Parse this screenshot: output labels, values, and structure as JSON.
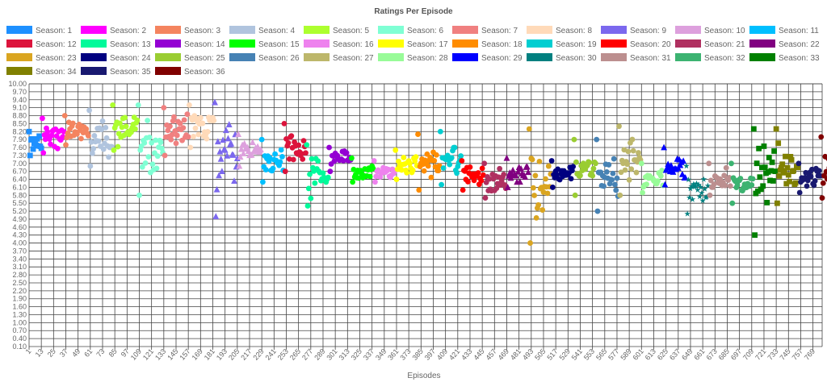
{
  "chart_data": {
    "type": "scatter",
    "title": "Ratings Per Episode",
    "xlabel": "Episodes",
    "ylabel": "",
    "xlim": [
      1,
      778
    ],
    "ylim": [
      0.1,
      10.0
    ],
    "y_step": 0.3,
    "x_tick_step": 12,
    "grid": true,
    "legend_position": "top",
    "series": [
      {
        "name": "Season: 1",
        "color": "#1e90ff",
        "shape": "square",
        "episodes": 13,
        "rating_range": [
          7.3,
          8.2
        ]
      },
      {
        "name": "Season: 2",
        "color": "#ff00ff",
        "shape": "circle",
        "episodes": 22,
        "rating_range": [
          7.4,
          8.7
        ]
      },
      {
        "name": "Season: 3",
        "color": "#f4845f",
        "shape": "circle",
        "episodes": 24,
        "rating_range": [
          7.7,
          8.8
        ]
      },
      {
        "name": "Season: 4",
        "color": "#b0c4de",
        "shape": "circle",
        "episodes": 23,
        "rating_range": [
          6.9,
          9.0
        ]
      },
      {
        "name": "Season: 5",
        "color": "#adff2f",
        "shape": "circle",
        "episodes": 25,
        "rating_range": [
          7.5,
          9.2
        ]
      },
      {
        "name": "Season: 6",
        "color": "#7fffd4",
        "shape": "circle",
        "episodes": 25,
        "rating_range": [
          5.8,
          9.2
        ]
      },
      {
        "name": "Season: 7",
        "color": "#f08080",
        "shape": "circle",
        "episodes": 25,
        "rating_range": [
          7.3,
          9.1
        ]
      },
      {
        "name": "Season: 8",
        "color": "#ffdab9",
        "shape": "circle",
        "episodes": 25,
        "rating_range": [
          7.6,
          9.2
        ]
      },
      {
        "name": "Season: 9",
        "color": "#7b68ee",
        "shape": "triangle",
        "episodes": 23,
        "rating_range": [
          5.0,
          9.3
        ]
      },
      {
        "name": "Season: 10",
        "color": "#dda0dd",
        "shape": "triangle",
        "episodes": 23,
        "rating_range": [
          6.9,
          8.1
        ]
      },
      {
        "name": "Season: 11",
        "color": "#00bfff",
        "shape": "circle",
        "episodes": 22,
        "rating_range": [
          6.3,
          7.9
        ]
      },
      {
        "name": "Season: 12",
        "color": "#dc143c",
        "shape": "circle",
        "episodes": 22,
        "rating_range": [
          6.7,
          8.5
        ]
      },
      {
        "name": "Season: 13",
        "color": "#00fa9a",
        "shape": "circle",
        "episodes": 22,
        "rating_range": [
          5.4,
          7.7
        ]
      },
      {
        "name": "Season: 14",
        "color": "#9400d3",
        "shape": "circle",
        "episodes": 22,
        "rating_range": [
          6.7,
          7.6
        ]
      },
      {
        "name": "Season: 15",
        "color": "#00ff00",
        "shape": "circle",
        "episodes": 22,
        "rating_range": [
          6.3,
          7.2
        ]
      },
      {
        "name": "Season: 16",
        "color": "#ee82ee",
        "shape": "circle",
        "episodes": 21,
        "rating_range": [
          6.3,
          7.1
        ]
      },
      {
        "name": "Season: 17",
        "color": "#ffff00",
        "shape": "circle",
        "episodes": 22,
        "rating_range": [
          6.4,
          7.5
        ]
      },
      {
        "name": "Season: 18",
        "color": "#ff8c00",
        "shape": "circle",
        "episodes": 22,
        "rating_range": [
          6.0,
          8.1
        ]
      },
      {
        "name": "Season: 19",
        "color": "#00ced1",
        "shape": "circle",
        "episodes": 21,
        "rating_range": [
          6.2,
          8.2
        ]
      },
      {
        "name": "Season: 20",
        "color": "#ff0000",
        "shape": "circle",
        "episodes": 22,
        "rating_range": [
          6.0,
          7.1
        ]
      },
      {
        "name": "Season: 21",
        "color": "#b03060",
        "shape": "circle",
        "episodes": 22,
        "rating_range": [
          5.7,
          7.0
        ]
      },
      {
        "name": "Season: 22",
        "color": "#800080",
        "shape": "triangle",
        "episodes": 22,
        "rating_range": [
          6.1,
          7.2
        ]
      },
      {
        "name": "Season: 23",
        "color": "#daa520",
        "shape": "circle",
        "episodes": 22,
        "rating_range": [
          4.0,
          8.3
        ]
      },
      {
        "name": "Season: 24",
        "color": "#000080",
        "shape": "circle",
        "episodes": 22,
        "rating_range": [
          6.1,
          7.1
        ]
      },
      {
        "name": "Season: 25",
        "color": "#9acd32",
        "shape": "circle",
        "episodes": 22,
        "rating_range": [
          5.8,
          7.9
        ]
      },
      {
        "name": "Season: 26",
        "color": "#4682b4",
        "shape": "circle",
        "episodes": 22,
        "rating_range": [
          5.2,
          7.9
        ]
      },
      {
        "name": "Season: 27",
        "color": "#bdb76b",
        "shape": "circle",
        "episodes": 22,
        "rating_range": [
          5.8,
          8.4
        ]
      },
      {
        "name": "Season: 28",
        "color": "#98fb98",
        "shape": "circle",
        "episodes": 22,
        "rating_range": [
          5.9,
          7.0
        ]
      },
      {
        "name": "Season: 29",
        "color": "#0000ff",
        "shape": "triangle",
        "episodes": 22,
        "rating_range": [
          6.2,
          7.6
        ]
      },
      {
        "name": "Season: 30",
        "color": "#008080",
        "shape": "star",
        "episodes": 22,
        "rating_range": [
          5.1,
          6.9
        ]
      },
      {
        "name": "Season: 31",
        "color": "#bc8f8f",
        "shape": "circle",
        "episodes": 22,
        "rating_range": [
          5.8,
          7.0
        ]
      },
      {
        "name": "Season: 32",
        "color": "#3cb371",
        "shape": "circle",
        "episodes": 22,
        "rating_range": [
          5.5,
          7.0
        ]
      },
      {
        "name": "Season: 33",
        "color": "#008000",
        "shape": "square",
        "episodes": 22,
        "rating_range": [
          4.3,
          8.3
        ]
      },
      {
        "name": "Season: 34",
        "color": "#808000",
        "shape": "square",
        "episodes": 22,
        "rating_range": [
          5.5,
          8.3
        ]
      },
      {
        "name": "Season: 35",
        "color": "#191970",
        "shape": "circle",
        "episodes": 22,
        "rating_range": [
          5.9,
          7.0
        ]
      },
      {
        "name": "Season: 36",
        "color": "#800000",
        "shape": "circle",
        "episodes": 10,
        "rating_range": [
          5.7,
          8.0
        ]
      }
    ]
  }
}
